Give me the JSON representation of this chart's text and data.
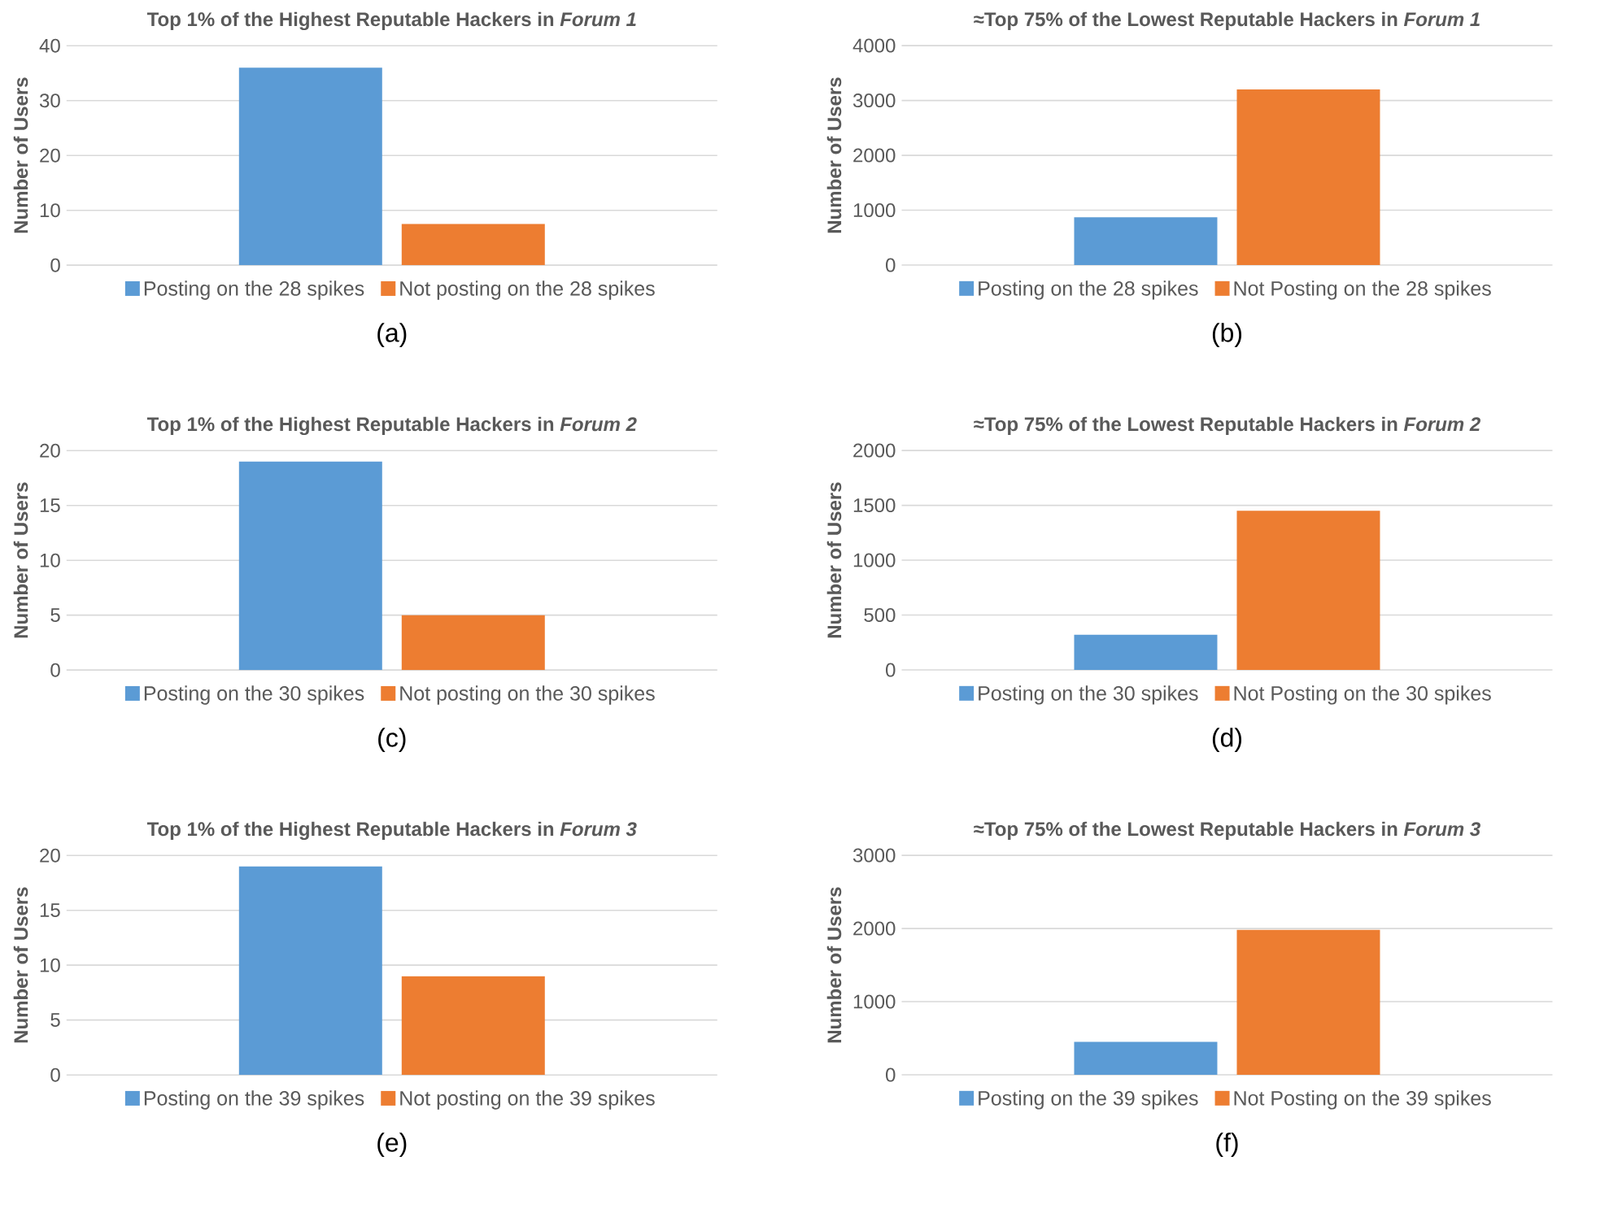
{
  "chart_data": [
    {
      "type": "bar",
      "title": "Top 1% of the Highest Reputable Hackers in *Forum 1*",
      "ylabel": "Number of Users",
      "categories": [
        null
      ],
      "ylim": [
        0,
        40
      ],
      "yticks": [
        0,
        10,
        20,
        30,
        40
      ],
      "grid": "y",
      "legend": "bottom",
      "annotations": [
        "(a)"
      ],
      "series": [
        {
          "name": "Posting on the 28 spikes",
          "color": "#5b9bd5",
          "values": [
            36
          ]
        },
        {
          "name": "Not posting on the 28 spikes",
          "color": "#ed7d31",
          "values": [
            7.5
          ]
        }
      ]
    },
    {
      "type": "bar",
      "title": "≈Top 75% of the Lowest Reputable Hackers in *Forum 1*",
      "ylabel": "Number of Users",
      "categories": [
        null
      ],
      "ylim": [
        0,
        4000
      ],
      "yticks": [
        0,
        1000,
        2000,
        3000,
        4000
      ],
      "grid": "y",
      "legend": "bottom",
      "annotations": [
        "(b)"
      ],
      "series": [
        {
          "name": "Posting on the 28 spikes",
          "color": "#5b9bd5",
          "values": [
            870
          ]
        },
        {
          "name": "Not Posting on the 28 spikes",
          "color": "#ed7d31",
          "values": [
            3200
          ]
        }
      ]
    },
    {
      "type": "bar",
      "title": "Top 1% of the Highest Reputable Hackers in *Forum 2*",
      "ylabel": "Number of Users",
      "categories": [
        null
      ],
      "ylim": [
        0,
        20
      ],
      "yticks": [
        0,
        5,
        10,
        15,
        20
      ],
      "grid": "y",
      "legend": "bottom",
      "annotations": [
        "(c)"
      ],
      "series": [
        {
          "name": "Posting on the 30 spikes",
          "color": "#5b9bd5",
          "values": [
            19
          ]
        },
        {
          "name": "Not posting on the 30 spikes",
          "color": "#ed7d31",
          "values": [
            5
          ]
        }
      ]
    },
    {
      "type": "bar",
      "title": "≈Top 75% of the Lowest Reputable Hackers in *Forum 2*",
      "ylabel": "Number of Users",
      "categories": [
        null
      ],
      "ylim": [
        0,
        2000
      ],
      "yticks": [
        0,
        500,
        1000,
        1500,
        2000
      ],
      "grid": "y",
      "legend": "bottom",
      "annotations": [
        "(d)"
      ],
      "series": [
        {
          "name": "Posting on the 30 spikes",
          "color": "#5b9bd5",
          "values": [
            320
          ]
        },
        {
          "name": "Not Posting on the 30 spikes",
          "color": "#ed7d31",
          "values": [
            1450
          ]
        }
      ]
    },
    {
      "type": "bar",
      "title": "Top 1% of the Highest Reputable Hackers in *Forum 3*",
      "ylabel": "Number of Users",
      "categories": [
        null
      ],
      "ylim": [
        0,
        20
      ],
      "yticks": [
        0,
        5,
        10,
        15,
        20
      ],
      "grid": "y",
      "legend": "bottom",
      "annotations": [
        "(e)"
      ],
      "series": [
        {
          "name": "Posting on the 39 spikes",
          "color": "#5b9bd5",
          "values": [
            19
          ]
        },
        {
          "name": "Not posting on the 39 spikes",
          "color": "#ed7d31",
          "values": [
            9
          ]
        }
      ]
    },
    {
      "type": "bar",
      "title": "≈Top 75% of the Lowest Reputable Hackers in *Forum 3*",
      "ylabel": "Number of Users",
      "categories": [
        null
      ],
      "ylim": [
        0,
        3000
      ],
      "yticks": [
        0,
        1000,
        2000,
        3000
      ],
      "grid": "y",
      "legend": "bottom",
      "annotations": [
        "(f)"
      ],
      "series": [
        {
          "name": "Posting on the 39 spikes",
          "color": "#5b9bd5",
          "values": [
            450
          ]
        },
        {
          "name": "Not Posting on the 39 spikes",
          "color": "#ed7d31",
          "values": [
            1980
          ]
        }
      ]
    }
  ]
}
